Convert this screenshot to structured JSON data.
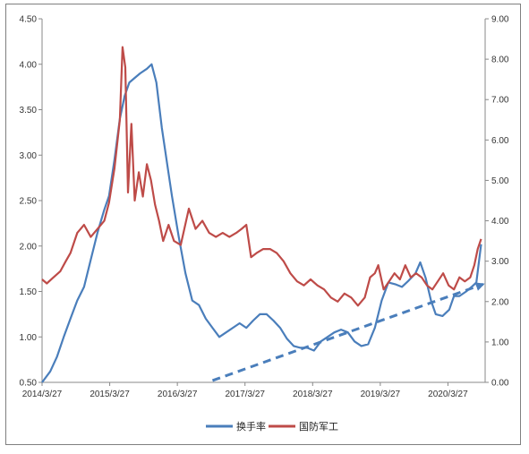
{
  "chart_data": {
    "type": "line",
    "title": "",
    "xlabel": "",
    "ylabel_left": "",
    "ylabel_right": "",
    "grid": false,
    "legend_position": "bottom",
    "x_ticks": [
      "2014/3/27",
      "2015/3/27",
      "2016/3/27",
      "2017/3/27",
      "2018/3/27",
      "2019/3/27",
      "2020/3/27"
    ],
    "y_left": {
      "min": 0.5,
      "max": 4.5,
      "ticks": [
        "0.50",
        "1.00",
        "1.50",
        "2.00",
        "2.50",
        "3.00",
        "3.50",
        "4.00",
        "4.50"
      ]
    },
    "y_right": {
      "min": 0.0,
      "max": 9.0,
      "ticks": [
        "0.00",
        "1.00",
        "2.00",
        "3.00",
        "4.00",
        "5.00",
        "6.00",
        "7.00",
        "8.00",
        "9.00"
      ]
    },
    "series": [
      {
        "name": "换手率",
        "axis": "left",
        "color": "#4a7ebb",
        "points": [
          [
            2014.23,
            0.5
          ],
          [
            2014.35,
            0.62
          ],
          [
            2014.45,
            0.78
          ],
          [
            2014.55,
            1.0
          ],
          [
            2014.65,
            1.2
          ],
          [
            2014.75,
            1.4
          ],
          [
            2014.85,
            1.55
          ],
          [
            2014.95,
            1.85
          ],
          [
            2015.05,
            2.15
          ],
          [
            2015.15,
            2.4
          ],
          [
            2015.22,
            2.55
          ],
          [
            2015.3,
            2.95
          ],
          [
            2015.38,
            3.4
          ],
          [
            2015.45,
            3.65
          ],
          [
            2015.52,
            3.8
          ],
          [
            2015.6,
            3.85
          ],
          [
            2015.68,
            3.9
          ],
          [
            2015.78,
            3.95
          ],
          [
            2015.85,
            4.0
          ],
          [
            2015.92,
            3.8
          ],
          [
            2016.0,
            3.3
          ],
          [
            2016.08,
            2.9
          ],
          [
            2016.15,
            2.55
          ],
          [
            2016.25,
            2.1
          ],
          [
            2016.35,
            1.7
          ],
          [
            2016.45,
            1.4
          ],
          [
            2016.55,
            1.35
          ],
          [
            2016.65,
            1.2
          ],
          [
            2016.75,
            1.1
          ],
          [
            2016.85,
            1.0
          ],
          [
            2016.95,
            1.05
          ],
          [
            2017.05,
            1.1
          ],
          [
            2017.15,
            1.15
          ],
          [
            2017.25,
            1.1
          ],
          [
            2017.35,
            1.18
          ],
          [
            2017.45,
            1.25
          ],
          [
            2017.55,
            1.25
          ],
          [
            2017.65,
            1.18
          ],
          [
            2017.75,
            1.1
          ],
          [
            2017.85,
            0.98
          ],
          [
            2017.95,
            0.9
          ],
          [
            2018.05,
            0.88
          ],
          [
            2018.15,
            0.88
          ],
          [
            2018.25,
            0.85
          ],
          [
            2018.35,
            0.95
          ],
          [
            2018.45,
            1.0
          ],
          [
            2018.55,
            1.05
          ],
          [
            2018.65,
            1.08
          ],
          [
            2018.75,
            1.05
          ],
          [
            2018.85,
            0.95
          ],
          [
            2018.95,
            0.9
          ],
          [
            2019.05,
            0.92
          ],
          [
            2019.15,
            1.1
          ],
          [
            2019.25,
            1.4
          ],
          [
            2019.35,
            1.6
          ],
          [
            2019.45,
            1.58
          ],
          [
            2019.55,
            1.55
          ],
          [
            2019.65,
            1.62
          ],
          [
            2019.75,
            1.7
          ],
          [
            2019.82,
            1.82
          ],
          [
            2019.9,
            1.65
          ],
          [
            2019.98,
            1.4
          ],
          [
            2020.05,
            1.25
          ],
          [
            2020.15,
            1.23
          ],
          [
            2020.25,
            1.3
          ],
          [
            2020.32,
            1.45
          ],
          [
            2020.4,
            1.45
          ],
          [
            2020.5,
            1.5
          ],
          [
            2020.58,
            1.55
          ],
          [
            2020.65,
            1.6
          ],
          [
            2020.72,
            2.02
          ]
        ]
      },
      {
        "name": "国防军工",
        "axis": "right",
        "color": "#be4b48",
        "points": [
          [
            2014.23,
            2.55
          ],
          [
            2014.3,
            2.45
          ],
          [
            2014.4,
            2.6
          ],
          [
            2014.5,
            2.75
          ],
          [
            2014.58,
            3.0
          ],
          [
            2014.65,
            3.2
          ],
          [
            2014.75,
            3.7
          ],
          [
            2014.85,
            3.9
          ],
          [
            2014.95,
            3.6
          ],
          [
            2015.05,
            3.8
          ],
          [
            2015.15,
            4.0
          ],
          [
            2015.22,
            4.45
          ],
          [
            2015.3,
            5.3
          ],
          [
            2015.38,
            6.5
          ],
          [
            2015.42,
            8.3
          ],
          [
            2015.46,
            7.8
          ],
          [
            2015.5,
            4.7
          ],
          [
            2015.55,
            6.4
          ],
          [
            2015.6,
            4.5
          ],
          [
            2015.66,
            5.2
          ],
          [
            2015.72,
            4.6
          ],
          [
            2015.78,
            5.4
          ],
          [
            2015.84,
            5.0
          ],
          [
            2015.9,
            4.4
          ],
          [
            2015.96,
            4.0
          ],
          [
            2016.02,
            3.5
          ],
          [
            2016.1,
            3.9
          ],
          [
            2016.18,
            3.5
          ],
          [
            2016.28,
            3.4
          ],
          [
            2016.4,
            4.3
          ],
          [
            2016.5,
            3.8
          ],
          [
            2016.6,
            4.0
          ],
          [
            2016.7,
            3.7
          ],
          [
            2016.8,
            3.6
          ],
          [
            2016.9,
            3.7
          ],
          [
            2017.0,
            3.6
          ],
          [
            2017.1,
            3.7
          ],
          [
            2017.18,
            3.8
          ],
          [
            2017.25,
            3.9
          ],
          [
            2017.32,
            3.1
          ],
          [
            2017.4,
            3.2
          ],
          [
            2017.5,
            3.3
          ],
          [
            2017.6,
            3.3
          ],
          [
            2017.7,
            3.2
          ],
          [
            2017.8,
            3.0
          ],
          [
            2017.9,
            2.7
          ],
          [
            2018.0,
            2.5
          ],
          [
            2018.1,
            2.4
          ],
          [
            2018.2,
            2.55
          ],
          [
            2018.3,
            2.4
          ],
          [
            2018.4,
            2.3
          ],
          [
            2018.5,
            2.1
          ],
          [
            2018.6,
            2.0
          ],
          [
            2018.7,
            2.2
          ],
          [
            2018.8,
            2.1
          ],
          [
            2018.9,
            1.9
          ],
          [
            2019.0,
            2.1
          ],
          [
            2019.08,
            2.6
          ],
          [
            2019.15,
            2.7
          ],
          [
            2019.2,
            2.9
          ],
          [
            2019.28,
            2.3
          ],
          [
            2019.36,
            2.5
          ],
          [
            2019.44,
            2.7
          ],
          [
            2019.52,
            2.55
          ],
          [
            2019.6,
            2.9
          ],
          [
            2019.68,
            2.6
          ],
          [
            2019.76,
            2.7
          ],
          [
            2019.84,
            2.6
          ],
          [
            2019.92,
            2.4
          ],
          [
            2020.0,
            2.3
          ],
          [
            2020.08,
            2.5
          ],
          [
            2020.16,
            2.7
          ],
          [
            2020.24,
            2.4
          ],
          [
            2020.32,
            2.3
          ],
          [
            2020.4,
            2.6
          ],
          [
            2020.48,
            2.5
          ],
          [
            2020.56,
            2.6
          ],
          [
            2020.62,
            2.9
          ],
          [
            2020.67,
            3.3
          ],
          [
            2020.72,
            3.55
          ]
        ]
      }
    ],
    "trend_line": {
      "axis": "left",
      "color": "#4a7ebb",
      "dashed": true,
      "arrow": true,
      "from": [
        2016.75,
        0.52
      ],
      "to": [
        2020.75,
        1.58
      ]
    }
  },
  "legend": {
    "items": [
      {
        "label": "换手率",
        "color": "#4a7ebb"
      },
      {
        "label": "国防军工",
        "color": "#be4b48"
      }
    ]
  }
}
